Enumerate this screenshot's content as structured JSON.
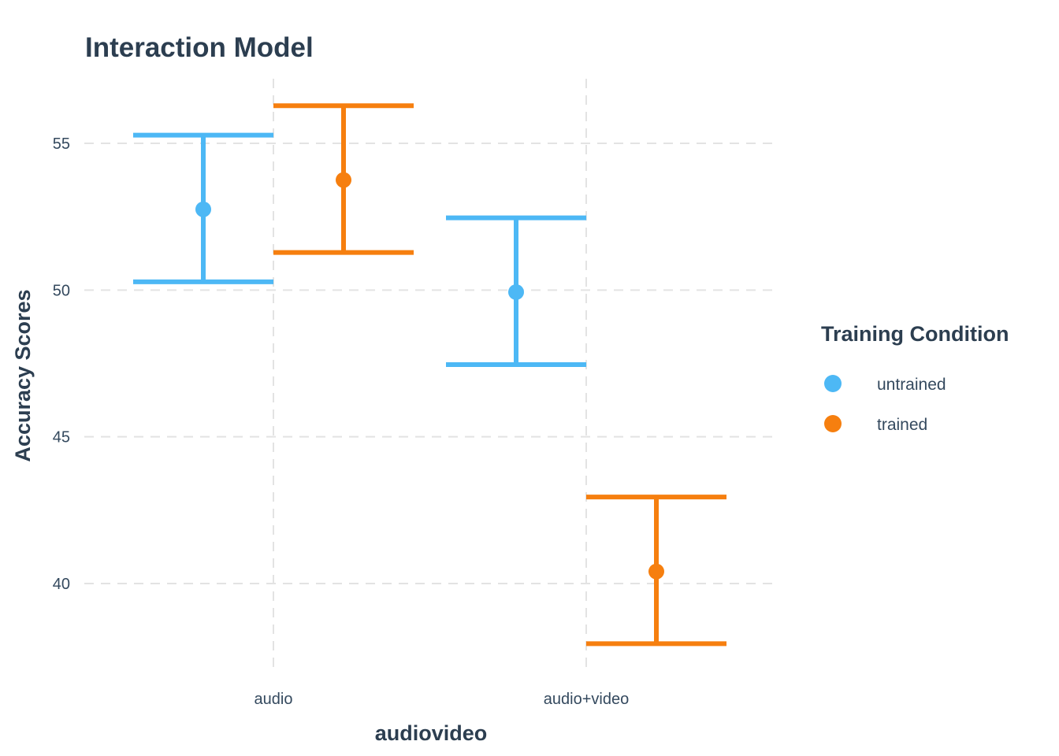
{
  "chart_data": {
    "type": "errorbar",
    "title": "Interaction Model",
    "xlabel": "audiovideo",
    "ylabel": "Accuracy Scores",
    "categories": [
      "audio",
      "audio+video"
    ],
    "ylim": [
      37.2,
      57.2
    ],
    "yticks": [
      40,
      45,
      50,
      55
    ],
    "grid": true,
    "legend": {
      "title": "Training Condition",
      "position": "right"
    },
    "series": [
      {
        "name": "untrained",
        "color": "#4db8f5",
        "points": [
          {
            "category": "audio",
            "y": 52.75,
            "ymin": 50.28,
            "ymax": 55.28
          },
          {
            "category": "audio+video",
            "y": 49.93,
            "ymin": 47.46,
            "ymax": 52.46
          }
        ]
      },
      {
        "name": "trained",
        "color": "#f67f0f",
        "points": [
          {
            "category": "audio",
            "y": 53.75,
            "ymin": 51.28,
            "ymax": 56.28
          },
          {
            "category": "audio+video",
            "y": 40.41,
            "ymin": 37.95,
            "ymax": 42.95
          }
        ]
      }
    ]
  }
}
